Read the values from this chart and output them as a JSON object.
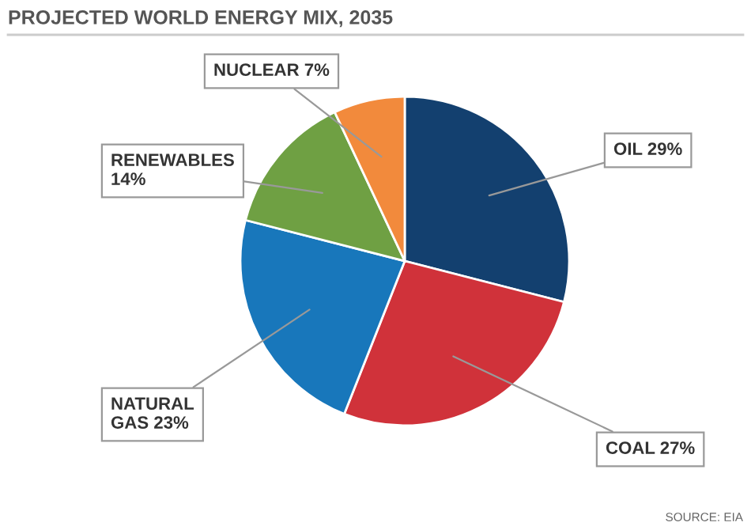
{
  "chart_data": {
    "type": "pie",
    "title": "PROJECTED WORLD ENERGY MIX, 2035",
    "categories": [
      "OIL",
      "COAL",
      "NATURAL\nGAS",
      "RENEWABLES",
      "NUCLEAR"
    ],
    "values": [
      29,
      27,
      23,
      14,
      7
    ],
    "value_labels": [
      "29%",
      "27%",
      "23%",
      "14%",
      "7%"
    ],
    "colors": [
      "#13406f",
      "#d0323a",
      "#1877bb",
      "#6fa043",
      "#f28a3c"
    ],
    "annotations": [
      "SOURCE: EIA"
    ]
  }
}
